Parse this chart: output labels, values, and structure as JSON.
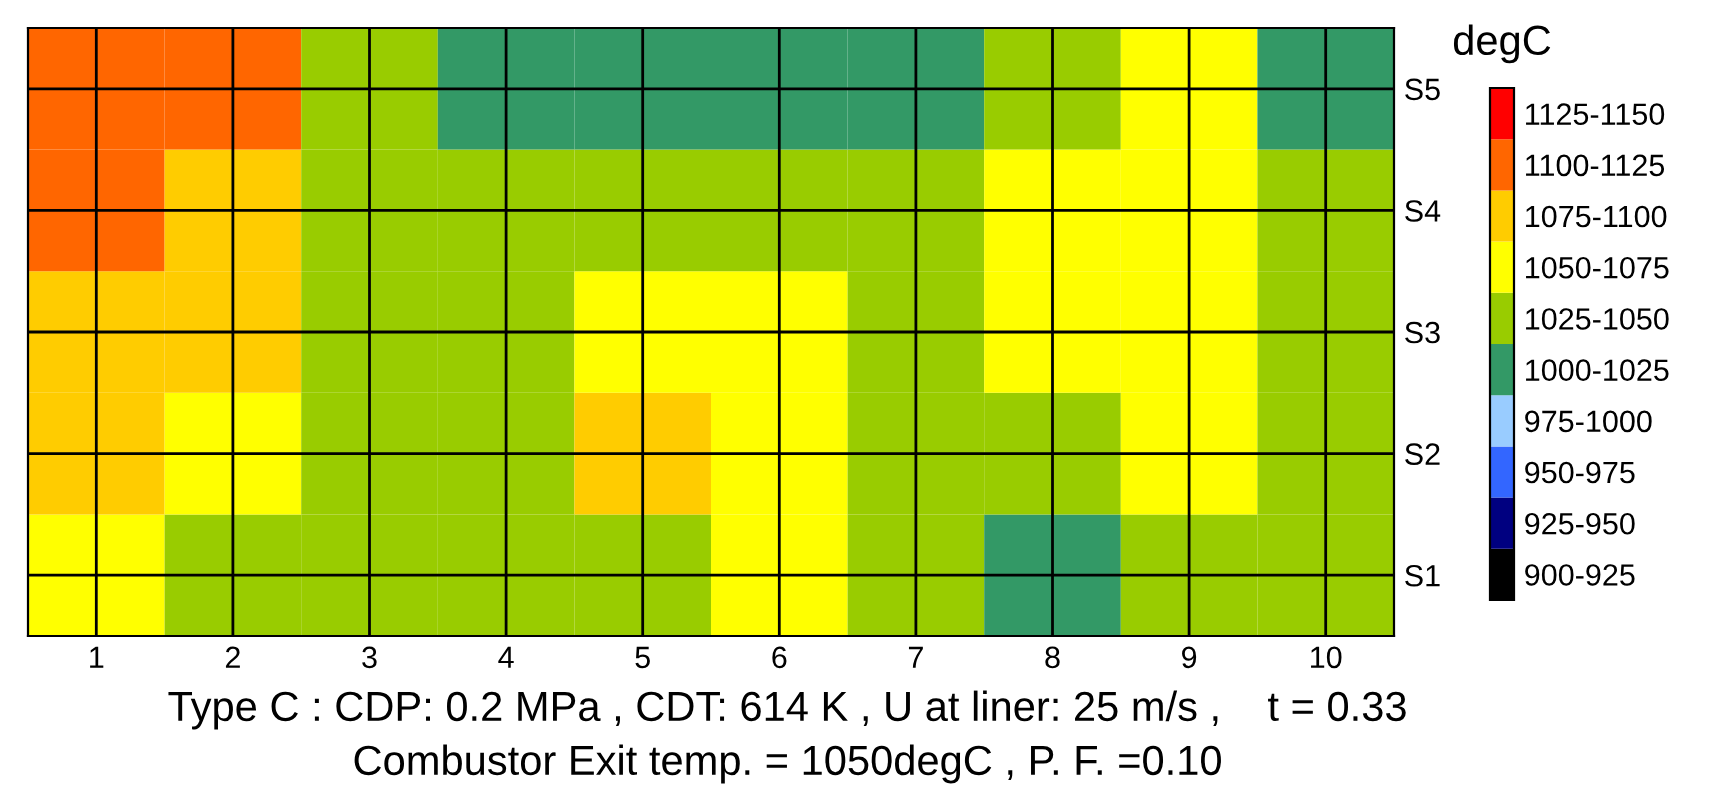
{
  "chart_data": {
    "type": "heatmap",
    "categories": [
      "1",
      "2",
      "3",
      "4",
      "5",
      "6",
      "7",
      "8",
      "9",
      "10"
    ],
    "y_categories": [
      "S5",
      "S4",
      "S3",
      "S2",
      "S1"
    ],
    "cells": [
      [
        1115,
        1105,
        1040,
        1015,
        1015,
        1020,
        1024,
        1040,
        1060,
        1020
      ],
      [
        1115,
        1095,
        1048,
        1030,
        1038,
        1040,
        1040,
        1052,
        1062,
        1035
      ],
      [
        1090,
        1080,
        1045,
        1035,
        1065,
        1060,
        1040,
        1060,
        1065,
        1035
      ],
      [
        1085,
        1060,
        1040,
        1035,
        1078,
        1060,
        1040,
        1045,
        1050,
        1035
      ],
      [
        1050,
        1040,
        1035,
        1035,
        1045,
        1055,
        1030,
        1005,
        1035,
        1035
      ]
    ],
    "clim": [
      900,
      1150
    ],
    "cticks": [
      {
        "value": 912.5,
        "label": "900-925"
      },
      {
        "value": 937.5,
        "label": "925-950"
      },
      {
        "value": 962.5,
        "label": "950-975"
      },
      {
        "value": 987.5,
        "label": "975-1000"
      },
      {
        "value": 1012.5,
        "label": "1000-1025"
      },
      {
        "value": 1037.5,
        "label": "1025-1050"
      },
      {
        "value": 1062.5,
        "label": "1050-1075"
      },
      {
        "value": 1087.5,
        "label": "1075-1100"
      },
      {
        "value": 1112.5,
        "label": "1100-1125"
      },
      {
        "value": 1137.5,
        "label": "1125-1150"
      }
    ],
    "colors": [
      "#000000",
      "#000080",
      "#3366ff",
      "#99ccff",
      "#339966",
      "#99cc00",
      "#ffff00",
      "#ffcc00",
      "#ff6600",
      "#ff0000"
    ],
    "clabel": "degC",
    "grid": true,
    "annotations": [
      "Type C : CDP: 0.2 MPa , CDT: 614 K , U at liner: 25 m/s ,    t = 0.33",
      "Combustor Exit temp. = 1050degC , P. F. =0.10"
    ]
  }
}
